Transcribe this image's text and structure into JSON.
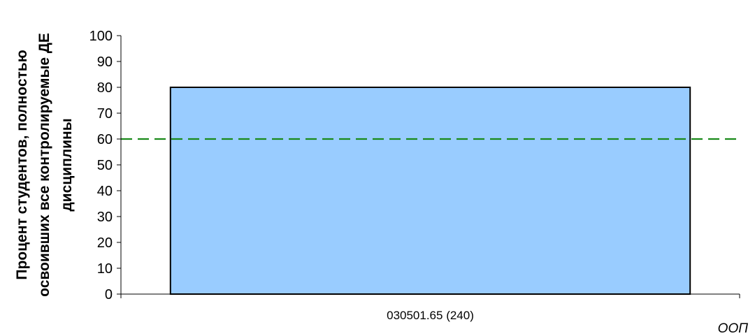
{
  "chart_data": {
    "type": "bar",
    "categories": [
      "030501.65 (240)"
    ],
    "values": [
      80
    ],
    "ylabel": [
      "Процент студентов, полностью",
      "освоивших все контролируемые ДЕ",
      "дисциплины"
    ],
    "xlabel": "ООП",
    "ylim": [
      0,
      100
    ],
    "yticks": [
      0,
      10,
      20,
      30,
      40,
      50,
      60,
      70,
      80,
      90,
      100
    ],
    "threshold": 60,
    "grid": false,
    "colors": {
      "bar_fill": "#99ccff",
      "bar_stroke": "#000000",
      "threshold_line": "#1a8a1a",
      "axis": "#000000"
    }
  }
}
